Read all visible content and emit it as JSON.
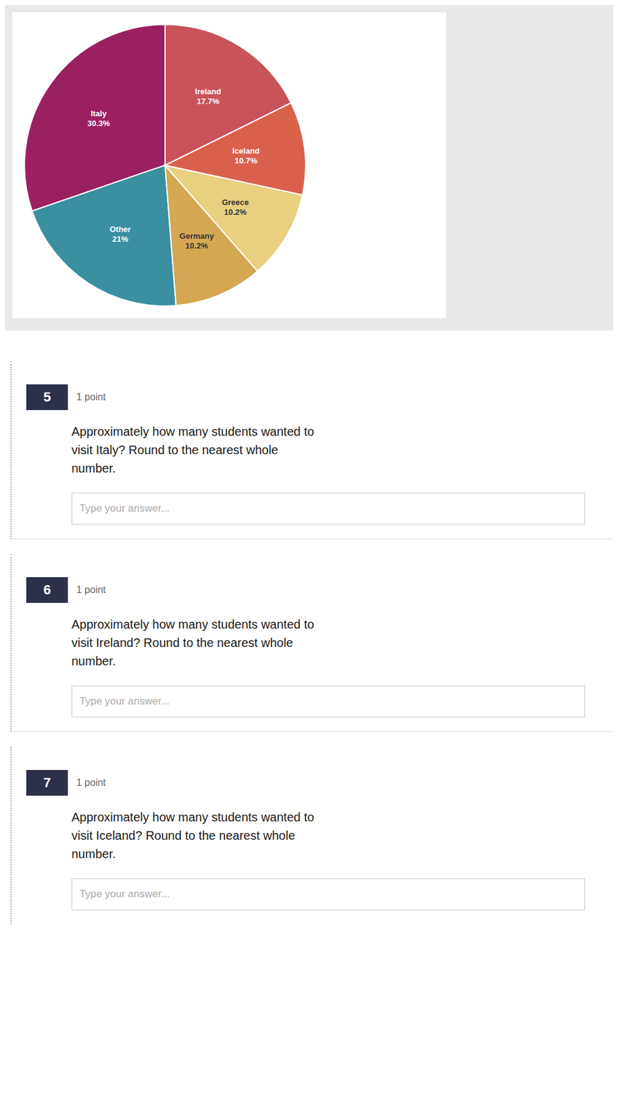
{
  "chart_data": {
    "type": "pie",
    "categories": [
      "Italy",
      "Other",
      "Germany",
      "Greece",
      "Iceland",
      "Ireland"
    ],
    "values": [
      30.3,
      21.0,
      10.2,
      10.2,
      10.7,
      17.7
    ],
    "colors": [
      "#9b2060",
      "#3a8fa0",
      "#d4a852",
      "#e8d080",
      "#d9614c",
      "#c9535a"
    ],
    "data_labels": true,
    "value_labels": [
      "Italy\n30.3%",
      "Other\n21%",
      "Germany\n10.2%",
      "Greece\n10.2%",
      "Iceland\n10.7%",
      "Ireland\n17.7%"
    ]
  },
  "questions": [
    {
      "number": "5",
      "points": "1 point",
      "text": "Approximately how many students wanted to\nvisit Italy?  Round to the nearest whole\nnumber."
    },
    {
      "number": "6",
      "points": "1 point",
      "text": "Approximately how many students wanted to\nvisit Ireland?  Round to the nearest whole\nnumber."
    },
    {
      "number": "7",
      "points": "1 point",
      "text": "Approximately how many students wanted to\nvisit Iceland?  Round to the nearest whole\nnumber."
    }
  ],
  "answer_placeholder": "Type your answer..."
}
